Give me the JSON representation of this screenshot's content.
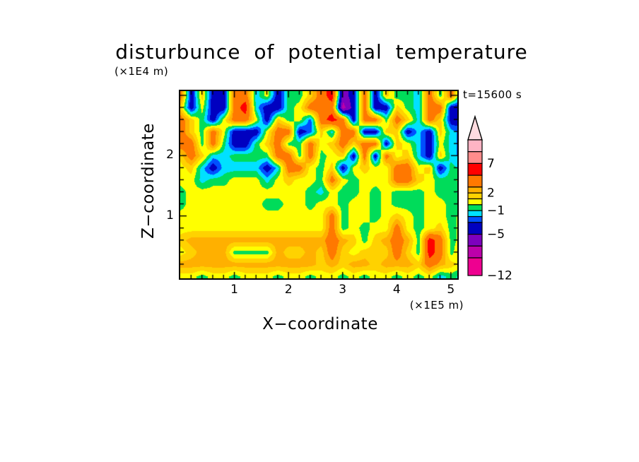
{
  "chart_data": {
    "type": "heatmap",
    "title": "disturbunce of potential temperature",
    "y_units_label": "(×1E4 m)",
    "x_units_label": "(×1E5 m)",
    "xlabel": "X−coordinate",
    "ylabel": "Z−coordinate",
    "time_annotation": "t=15600 s",
    "x_axis": {
      "min": 0,
      "max": 5.12,
      "major_ticks": [
        1,
        2,
        3,
        4,
        5
      ],
      "minor_step": 0.2
    },
    "z_axis": {
      "min": 0,
      "max": 3.07,
      "major_ticks": [
        1,
        2,
        3
      ],
      "labeled_ticks": [
        1,
        2
      ],
      "minor_step": 0.2
    },
    "levels": [
      -12,
      -9,
      -7,
      -5,
      -3,
      -2,
      -1,
      0,
      1,
      2,
      3,
      5,
      7,
      9,
      11
    ],
    "colors": [
      "#EE0090",
      "#BC00AA",
      "#7D00BE",
      "#0000C0",
      "#0050FF",
      "#00E1FF",
      "#00DC5A",
      "#FFFF00",
      "#FFD200",
      "#FFB000",
      "#FF7800",
      "#FF0000",
      "#FF8C8C",
      "#FFB4C4"
    ],
    "over_color": "#FFDCE0",
    "colorbar_labels": [
      {
        "value": 7,
        "text": "7"
      },
      {
        "value": 2,
        "text": "2"
      },
      {
        "value": -1,
        "text": "−1"
      },
      {
        "value": -5,
        "text": "−5"
      },
      {
        "value": -12,
        "text": "−12"
      }
    ],
    "grid": {
      "x_start": 0,
      "x_step": 0.2,
      "z_start_top": 3.0,
      "z_step": 0.2,
      "rows_top_to_bottom": [
        [
          4,
          -4,
          1.5,
          -4,
          -4,
          4,
          4,
          -1.5,
          0.5,
          -4,
          -0.5,
          -0.5,
          1.5,
          4,
          6,
          -6,
          -4,
          4,
          -4,
          1.5,
          -0.5,
          -0.5,
          -1.5,
          4,
          -0.5,
          4,
          -2.5
        ],
        [
          1.5,
          -4,
          0.5,
          -4,
          -4,
          4,
          6,
          -1.5,
          -4,
          -4,
          -0.5,
          0.5,
          4,
          4,
          4,
          -8,
          -4,
          4,
          -4,
          -4,
          1.5,
          -0.5,
          -1.5,
          4,
          4,
          -4,
          -4
        ],
        [
          4,
          1.5,
          -0.5,
          -4,
          0.5,
          4,
          4,
          0.5,
          -4,
          1.5,
          -0.5,
          0.5,
          -2.5,
          4,
          6,
          4,
          -4,
          4,
          4,
          -0.5,
          4,
          1.5,
          -1.5,
          4,
          1.5,
          -4,
          -4
        ],
        [
          4,
          1.5,
          -0.5,
          4,
          0.5,
          -4,
          -4,
          -4,
          0.5,
          4,
          4,
          -4,
          -2.5,
          1.5,
          -1.5,
          4,
          4,
          -4,
          -4,
          1.5,
          1.5,
          -4,
          -1.5,
          -4,
          1.5,
          -1.5,
          -2.5
        ],
        [
          4,
          4,
          -0.5,
          4,
          -0.5,
          -4,
          -4,
          -0.5,
          1.5,
          4,
          -0.5,
          -0.5,
          4,
          0.5,
          1.5,
          4,
          1.5,
          4,
          4,
          -4,
          1.5,
          0.5,
          -1.5,
          -4,
          0.5,
          -1.5,
          -2.5
        ],
        [
          1.5,
          4,
          1.5,
          -1.5,
          -1.5,
          -0.5,
          -0.5,
          -0.5,
          -0.5,
          4,
          4,
          -0.5,
          4,
          -0.5,
          0.5,
          1.5,
          -4,
          4,
          -4,
          4,
          0.5,
          1.5,
          -1.5,
          -4,
          1.5,
          -1.5,
          -2.5
        ],
        [
          0.5,
          1.5,
          -1.5,
          -4,
          -1.5,
          -1.5,
          -1.5,
          -1.5,
          -4,
          -1.5,
          4,
          4,
          0.5,
          -0.5,
          1.5,
          -4,
          0.5,
          1.5,
          0.5,
          0.5,
          4,
          4,
          0.5,
          1.5,
          -4,
          -0.5,
          -1.5
        ],
        [
          0.5,
          0.5,
          -1.5,
          -0.5,
          -0.5,
          0.5,
          0.5,
          0.5,
          -1.5,
          0.5,
          1.5,
          0.5,
          0.5,
          -0.5,
          4,
          0.5,
          -0.5,
          0.5,
          0.5,
          0.5,
          4,
          4,
          1.5,
          0.5,
          -0.5,
          -0.5,
          0.5
        ],
        [
          -0.5,
          0.5,
          0.5,
          0.5,
          0.5,
          0.5,
          0.5,
          0.5,
          0.5,
          0.5,
          0.5,
          0.5,
          -0.5,
          -1.5,
          0.5,
          -0.5,
          -0.5,
          0.5,
          -0.5,
          0.5,
          -0.5,
          -0.5,
          -0.5,
          0.5,
          -0.5,
          -0.5,
          -1.5
        ],
        [
          -0.5,
          0.5,
          0.5,
          0.5,
          0.5,
          0.5,
          0.5,
          0.5,
          -0.5,
          -0.5,
          0.5,
          0.5,
          -0.5,
          0.5,
          0.5,
          -0.5,
          0.5,
          0.5,
          -0.5,
          0.5,
          -0.5,
          -0.5,
          -0.5,
          0.5,
          0.5,
          -0.5,
          -0.5
        ],
        [
          0.5,
          0.5,
          0.5,
          0.5,
          0.5,
          0.5,
          0.5,
          0.5,
          0.5,
          0.5,
          0.5,
          0.5,
          0.5,
          0.5,
          4,
          -0.5,
          0.5,
          0.5,
          -0.5,
          0.5,
          1.5,
          0.5,
          -0.5,
          0.5,
          0.5,
          -0.5,
          0.5
        ],
        [
          0.5,
          0.5,
          0.5,
          0.5,
          0.5,
          0.5,
          0.5,
          0.5,
          0.5,
          0.5,
          0.5,
          0.5,
          0.5,
          0.5,
          4,
          -0.5,
          0.5,
          -0.5,
          0.5,
          0.5,
          4,
          0.5,
          -0.5,
          0.5,
          1.5,
          -0.5,
          0.5
        ],
        [
          1.5,
          2.5,
          2.5,
          2.5,
          2.5,
          2.5,
          2.5,
          2.5,
          2.5,
          2.5,
          2.5,
          2.5,
          2.5,
          2.5,
          4,
          2.5,
          1.5,
          -0.5,
          1.5,
          2.5,
          4,
          2.5,
          -0.5,
          6,
          4,
          -0.5,
          0.5
        ],
        [
          0.5,
          1.5,
          2.5,
          2.5,
          2.5,
          -0.5,
          -0.5,
          -0.5,
          -0.5,
          2.5,
          1.5,
          1.5,
          2.5,
          1.5,
          4,
          1.5,
          0.5,
          1.5,
          1.5,
          1.5,
          4,
          1.5,
          -0.5,
          6,
          4,
          -0.5,
          1.5
        ],
        [
          2.5,
          2.5,
          2.5,
          2.5,
          2.5,
          2.5,
          2.5,
          2.5,
          2.5,
          2.5,
          2.5,
          2.5,
          2.5,
          1.5,
          2.5,
          1.5,
          2.5,
          2.5,
          1.5,
          2.5,
          2.5,
          2.5,
          1.5,
          4,
          2.5,
          1.5,
          0.5
        ],
        [
          0.5,
          0.5,
          -0.5,
          0.5,
          0.5,
          -0.5,
          0.5,
          0.5,
          0.5,
          -0.5,
          0.5,
          0.5,
          -0.5,
          0.5,
          0.5,
          -0.5,
          0.5,
          -0.5,
          0.5,
          0.5,
          -0.5,
          0.5,
          -0.5,
          0.5,
          -1.5,
          -0.5,
          -1.5
        ]
      ]
    }
  }
}
